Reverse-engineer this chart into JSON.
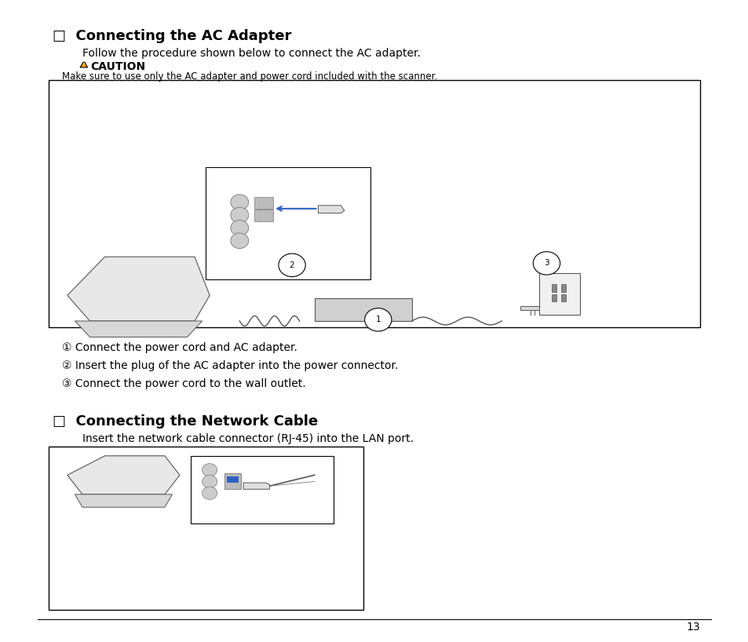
{
  "page_bg": "#ffffff",
  "page_number": "13",
  "section1_title": "□  Connecting the AC Adapter",
  "section1_intro": "Follow the procedure shown below to connect the AC adapter.",
  "caution_label": "CAUTION",
  "caution_text": "Make sure to use only the AC adapter and power cord included with the scanner.",
  "steps": [
    "① Connect the power cord and AC adapter.",
    "② Insert the plug of the AC adapter into the power connector.",
    "③ Connect the power cord to the wall outlet."
  ],
  "section2_title": "□  Connecting the Network Cable",
  "section2_intro": "Insert the network cable connector (RJ-45) into the LAN port.",
  "title_fontsize": 13,
  "body_fontsize": 10,
  "caution_fontsize": 10,
  "step_fontsize": 10
}
